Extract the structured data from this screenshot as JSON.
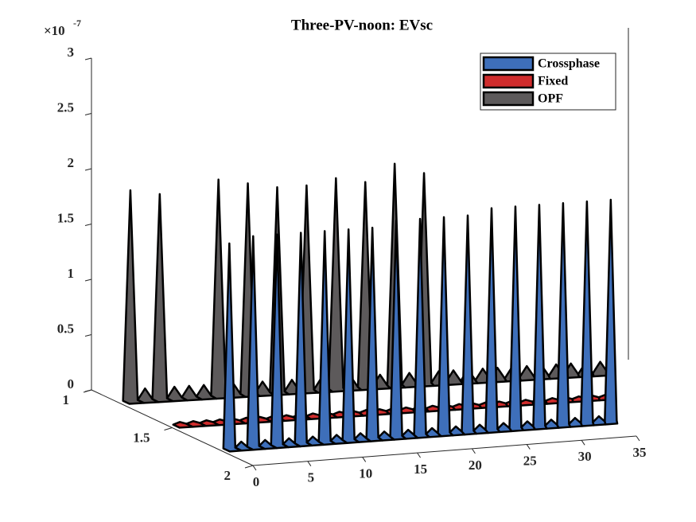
{
  "chart_data": {
    "type": "ribbon3d",
    "title": "Three-PV-noon: EVsc",
    "multiplier": {
      "base": "×10",
      "exponent": "-7"
    },
    "x": [
      1,
      2,
      3,
      4,
      5,
      6,
      7,
      8,
      9,
      10,
      11,
      12,
      13,
      14,
      15,
      16,
      17,
      18,
      19,
      20,
      21,
      22,
      23,
      24,
      25,
      26,
      27,
      28,
      29,
      30,
      31,
      32,
      33
    ],
    "series": [
      {
        "name": "Crossphase",
        "color": "#3e6fba",
        "values": [
          1.85,
          0.05,
          1.9,
          0.05,
          1.9,
          0.05,
          1.9,
          0.05,
          1.9,
          0.05,
          1.9,
          0.05,
          1.9,
          0.05,
          1.95,
          0.05,
          1.95,
          0.05,
          1.95,
          0.05,
          1.95,
          0.05,
          2.0,
          0.05,
          2.0,
          0.05,
          2.0,
          0.05,
          2.0,
          0.05,
          2.0,
          0.05,
          2.0
        ]
      },
      {
        "name": "Fixed",
        "color": "#d02c2c",
        "values": [
          0.02,
          0.02,
          0.02,
          0.02,
          0.02,
          0.02,
          0.02,
          0.02,
          0.02,
          0.02,
          0.02,
          0.02,
          0.02,
          0.02,
          0.02,
          0.02,
          0.02,
          0.02,
          0.02,
          0.02,
          0.02,
          0.02,
          0.02,
          0.02,
          0.02,
          0.02,
          0.02,
          0.02,
          0.02,
          0.02,
          0.02,
          0.02,
          0.02
        ]
      },
      {
        "name": "OPF",
        "color": "#5d5a5b",
        "values": [
          1.9,
          0.1,
          1.85,
          0.1,
          0.1,
          0.1,
          1.95,
          0.1,
          1.9,
          0.1,
          1.85,
          0.1,
          1.85,
          0.1,
          1.9,
          0.1,
          1.85,
          0.1,
          2.0,
          0.1,
          1.9,
          0.1,
          0.1,
          0.1,
          0.1,
          0.1,
          0.1,
          0.1,
          0.1,
          0.1,
          0.1,
          0.1,
          0.1
        ]
      }
    ],
    "xlim": [
      0,
      35
    ],
    "xticks": [
      0,
      5,
      10,
      15,
      20,
      25,
      30,
      35
    ],
    "ylim": [
      1,
      2
    ],
    "yticks": [
      1,
      1.5,
      2
    ],
    "zlim": [
      0,
      3
    ],
    "zticks": [
      0,
      0.5,
      1,
      1.5,
      2,
      2.5,
      3
    ]
  }
}
